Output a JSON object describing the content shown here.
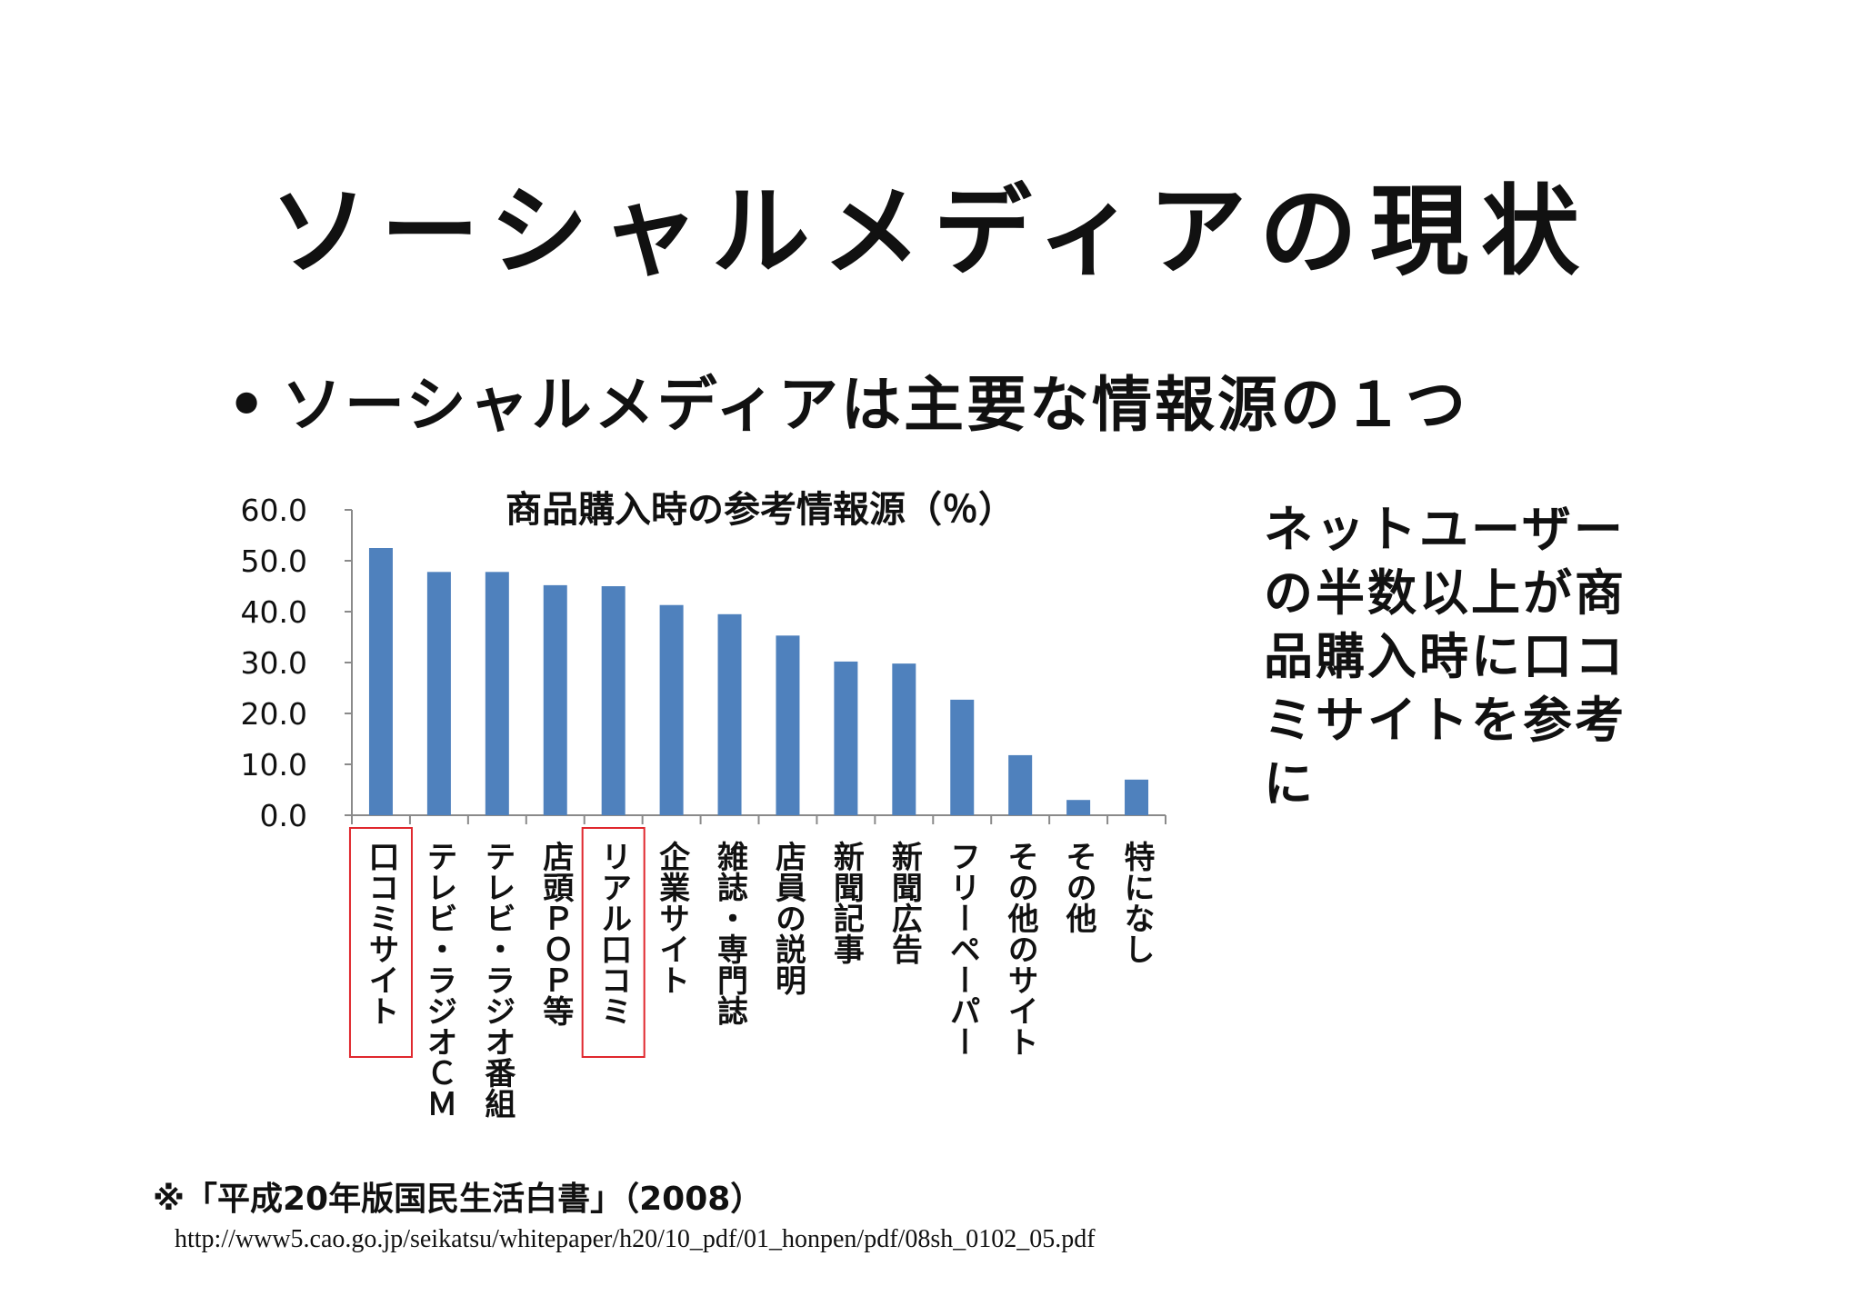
{
  "slide": {
    "title": "ソーシャルメディアの現状",
    "bullet_marker": "•",
    "bullet": "ソーシャルメディアは主要な情報源の１つ",
    "side_note": "ネットユーザーの半数以上が商品購入時に口コミサイトを参考に",
    "source_note": "※「平成20年版国民生活白書」（2008）",
    "source_url": "http://www5.cao.go.jp/seikatsu/whitepaper/h20/10_pdf/01_honpen/pdf/08sh_0102_05.pdf"
  },
  "chart_data": {
    "type": "bar",
    "title": "商品購入時の参考情報源（％）",
    "xlabel": "",
    "ylabel": "",
    "ylim": [
      0,
      60
    ],
    "yticks": [
      "0.0",
      "10.0",
      "20.0",
      "30.0",
      "40.0",
      "50.0",
      "60.0"
    ],
    "grid": false,
    "legend": "none",
    "bar_color": "#4F81BD",
    "highlight_color": "#E0282E",
    "categories": [
      "口コミサイト",
      "テレビ・ラジオＣＭ",
      "テレビ・ラジオ番組",
      "店頭ＰＯＰ等",
      "リアル口コミ",
      "企業サイト",
      "雑誌・専門誌",
      "店員の説明",
      "新聞記事",
      "新聞広告",
      "フリーペーパー",
      "その他のサイト",
      "その他",
      "特になし"
    ],
    "values": [
      52.5,
      47.8,
      47.8,
      45.2,
      45.0,
      41.3,
      39.5,
      35.3,
      30.2,
      29.8,
      22.7,
      11.8,
      3.0,
      7.0
    ],
    "highlighted_categories": [
      "口コミサイト",
      "リアル口コミ"
    ]
  }
}
